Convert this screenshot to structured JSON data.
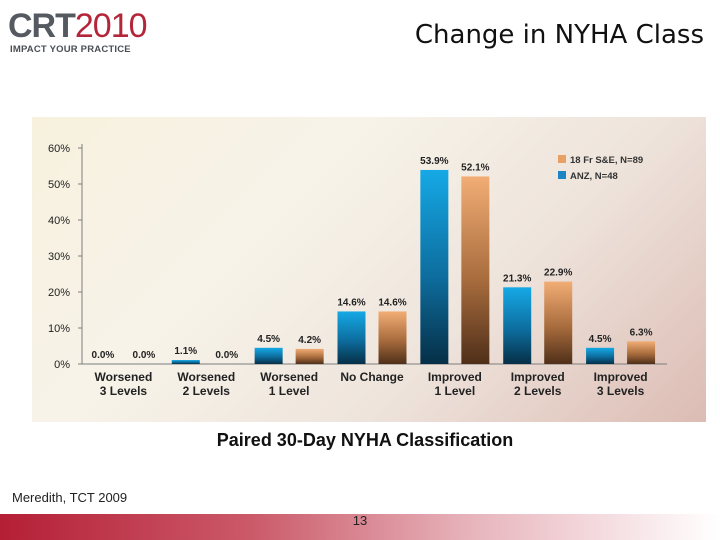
{
  "logo": {
    "brand": "CRT",
    "year": "2010",
    "tagline": "IMPACT YOUR PRACTICE"
  },
  "slide": {
    "title": "Change in NYHA Class",
    "source": "Meredith, TCT 2009",
    "page_number": "13"
  },
  "colors": {
    "blue": "#1c86c4",
    "orange": "#e9a064",
    "brand": "#b51f36"
  },
  "chart_data": {
    "type": "bar",
    "title": "",
    "xlabel": "Paired 30-Day NYHA Classification",
    "ylabel": "",
    "ylim": [
      0,
      60
    ],
    "yticks": [
      "0%",
      "10%",
      "20%",
      "30%",
      "40%",
      "50%",
      "60%"
    ],
    "grid": false,
    "legend_position": "top-right",
    "categories": [
      [
        "Worsened",
        "3 Levels"
      ],
      [
        "Worsened",
        "2 Levels"
      ],
      [
        "Worsened",
        "1 Level"
      ],
      [
        "No Change"
      ],
      [
        "Improved",
        "1 Level"
      ],
      [
        "Improved",
        "2 Levels"
      ],
      [
        "Improved",
        "3 Levels"
      ]
    ],
    "series": [
      {
        "name": "ANZ, N=48",
        "color": "blue",
        "values": [
          0.0,
          1.1,
          4.5,
          14.6,
          53.9,
          21.3,
          4.5
        ],
        "labels": [
          "0.0%",
          "1.1%",
          "4.5%",
          "14.6%",
          "53.9%",
          "21.3%",
          "4.5%"
        ]
      },
      {
        "name": "18 Fr S&E, N=89",
        "color": "orange",
        "values": [
          0.0,
          0.0,
          4.2,
          14.6,
          52.1,
          22.9,
          6.3
        ],
        "labels": [
          "0.0%",
          "0.0%",
          "4.2%",
          "14.6%",
          "52.1%",
          "22.9%",
          "6.3%"
        ]
      }
    ],
    "legend_order": [
      1,
      0
    ]
  }
}
